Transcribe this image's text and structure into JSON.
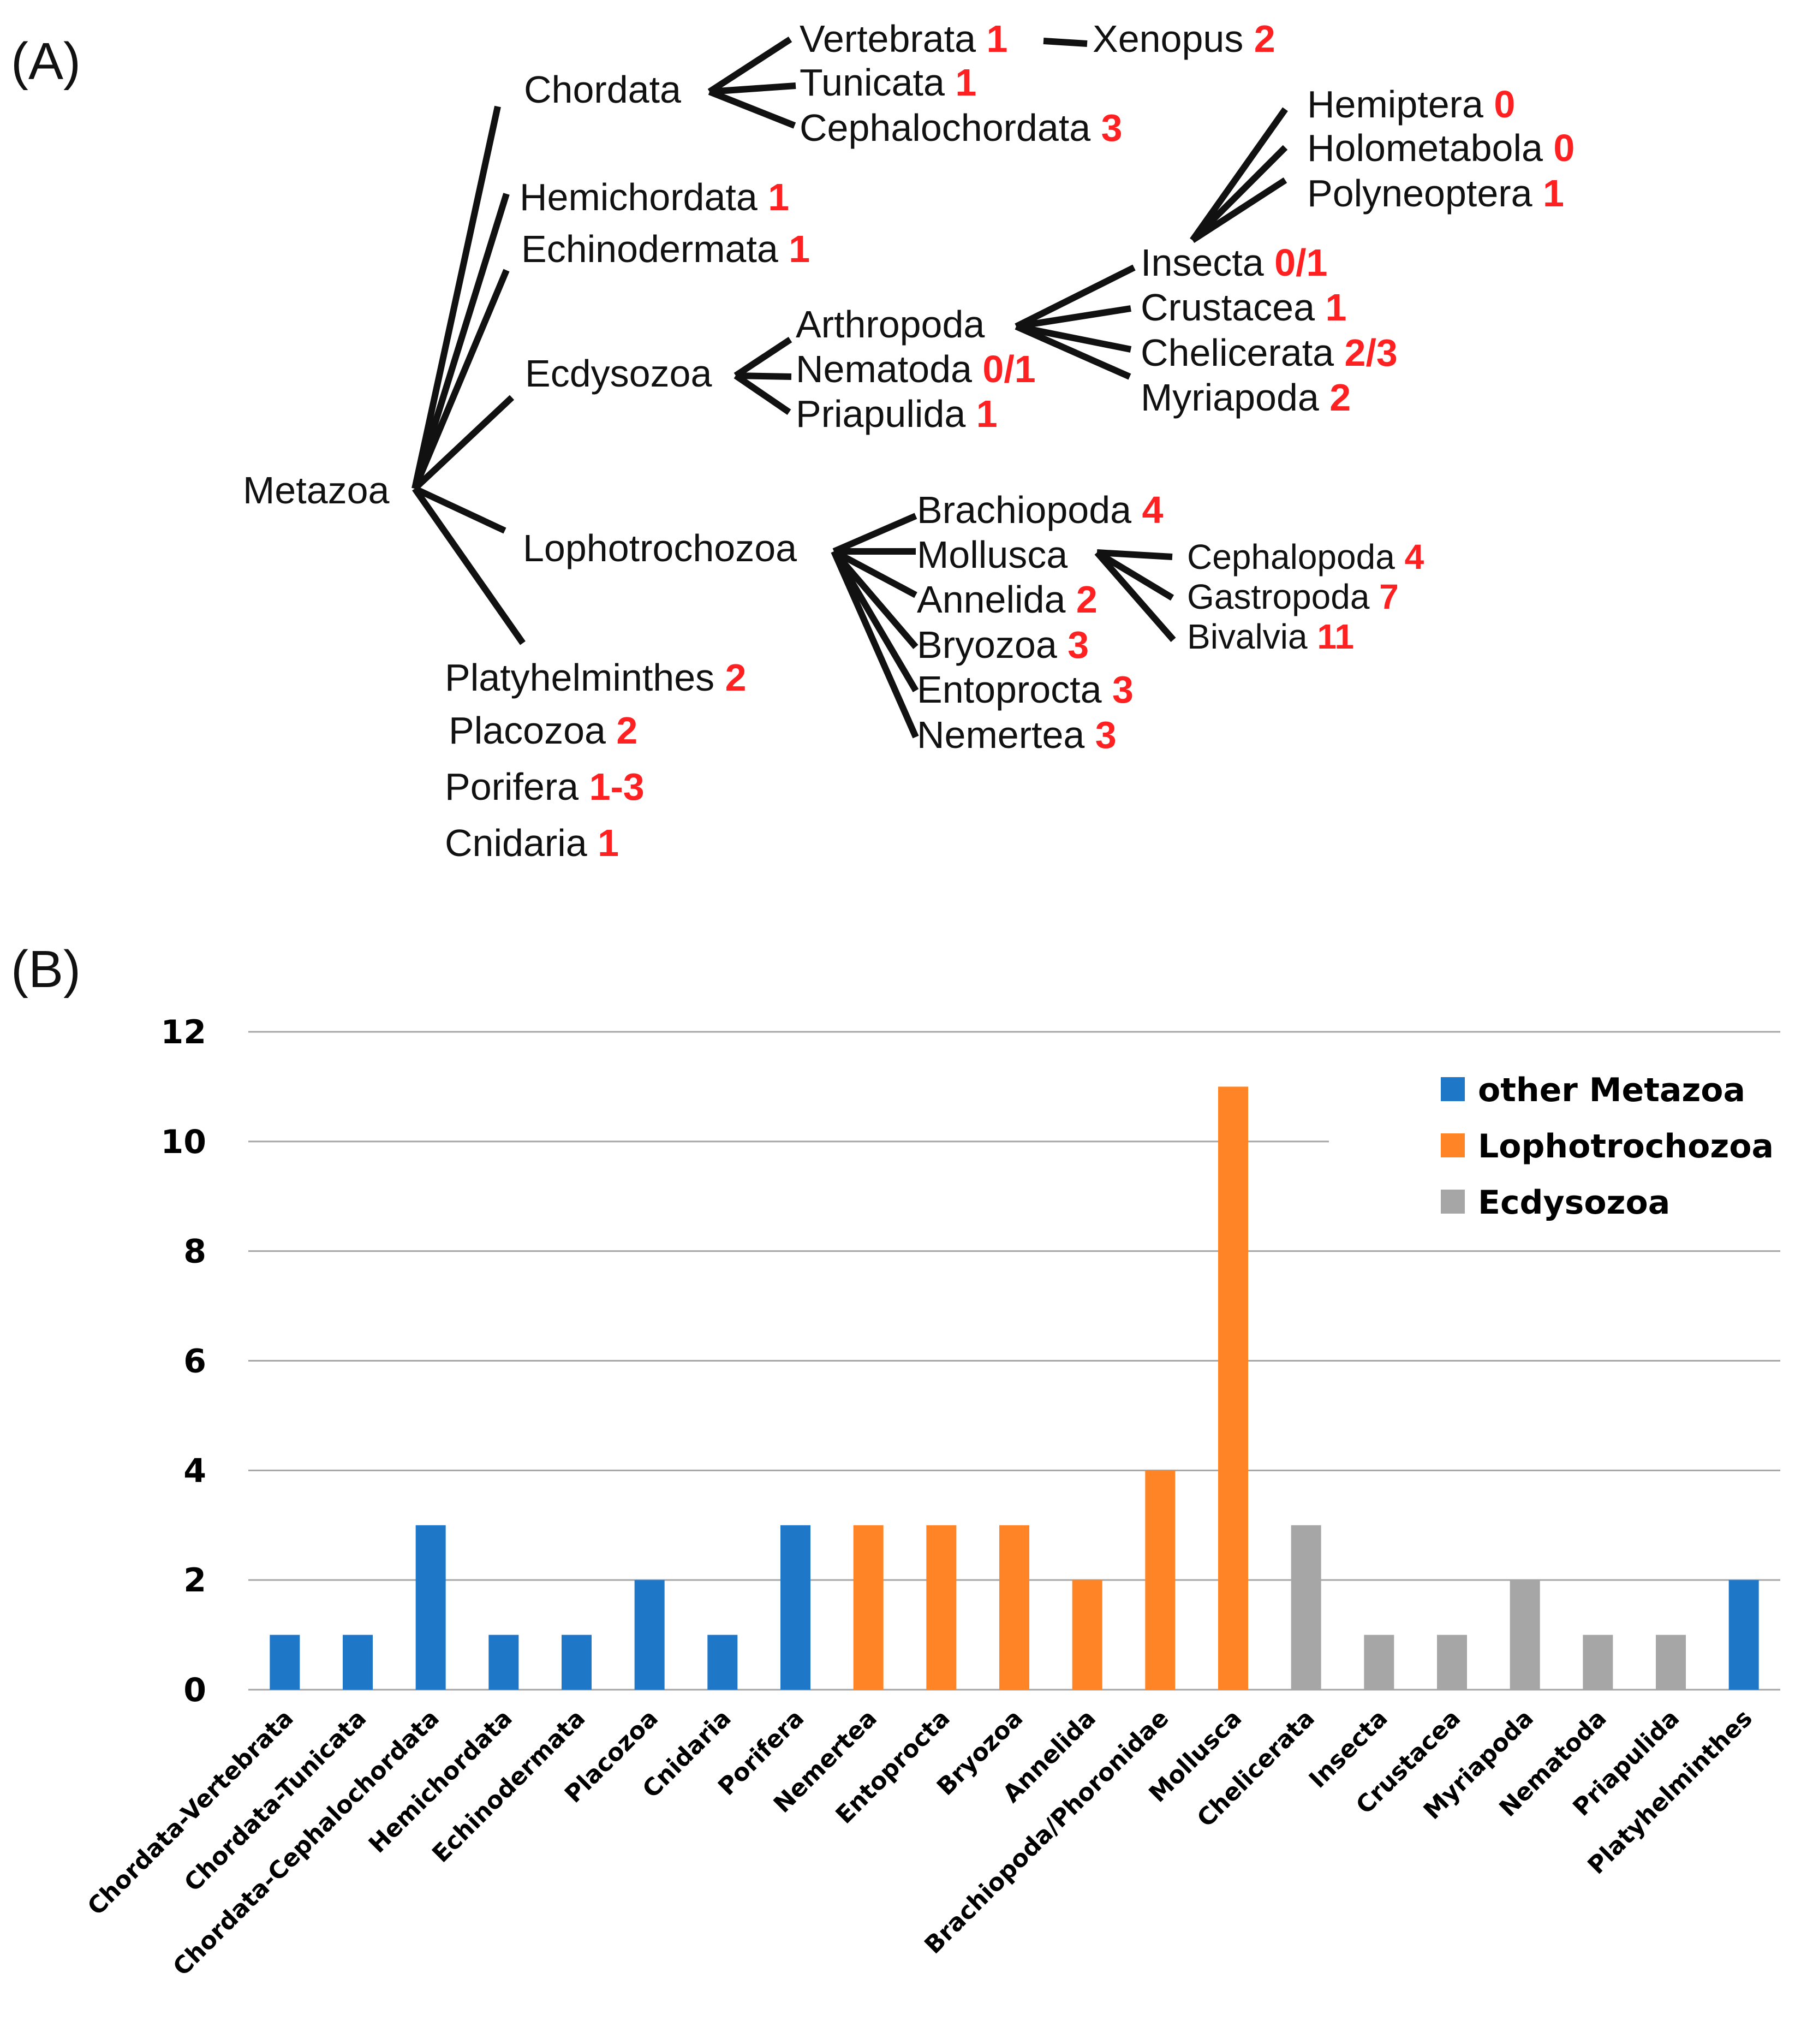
{
  "panel_a": {
    "label": "(A)",
    "taxa": [
      {
        "id": "metazoa",
        "name": "Metazoa",
        "count": ""
      },
      {
        "id": "chordata",
        "name": "Chordata",
        "count": ""
      },
      {
        "id": "vertebrata",
        "name": "Vertebrata",
        "count": "1"
      },
      {
        "id": "xenopus",
        "name": "Xenopus",
        "count": "2"
      },
      {
        "id": "tunicata",
        "name": "Tunicata",
        "count": "1"
      },
      {
        "id": "cephalochordata",
        "name": "Cephalochordata",
        "count": "3"
      },
      {
        "id": "hemichordata",
        "name": "Hemichordata",
        "count": "1"
      },
      {
        "id": "echinodermata",
        "name": "Echinodermata",
        "count": "1"
      },
      {
        "id": "ecdysozoa",
        "name": "Ecdysozoa",
        "count": ""
      },
      {
        "id": "arthropoda",
        "name": "Arthropoda",
        "count": ""
      },
      {
        "id": "nematoda",
        "name": "Nematoda",
        "count": "0/1"
      },
      {
        "id": "priapulida",
        "name": "Priapulida",
        "count": "1"
      },
      {
        "id": "insecta",
        "name": "Insecta",
        "count": "0/1"
      },
      {
        "id": "crustacea",
        "name": "Crustacea",
        "count": "1"
      },
      {
        "id": "chelicerata",
        "name": "Chelicerata",
        "count": "2/3"
      },
      {
        "id": "myriapoda",
        "name": "Myriapoda",
        "count": "2"
      },
      {
        "id": "hemiptera",
        "name": "Hemiptera",
        "count": "0"
      },
      {
        "id": "holometabola",
        "name": "Holometabola",
        "count": "0"
      },
      {
        "id": "polyneoptera",
        "name": "Polyneoptera",
        "count": "1"
      },
      {
        "id": "lophotrochozoa",
        "name": "Lophotrochozoa",
        "count": ""
      },
      {
        "id": "brachiopoda",
        "name": "Brachiopoda",
        "count": "4"
      },
      {
        "id": "mollusca",
        "name": "Mollusca",
        "count": ""
      },
      {
        "id": "annelida",
        "name": "Annelida",
        "count": "2"
      },
      {
        "id": "bryozoa",
        "name": "Bryozoa",
        "count": "3"
      },
      {
        "id": "entoprocta",
        "name": "Entoprocta",
        "count": "3"
      },
      {
        "id": "nemertea",
        "name": "Nemertea",
        "count": "3"
      },
      {
        "id": "cephalopoda",
        "name": "Cephalopoda",
        "count": "4"
      },
      {
        "id": "gastropoda",
        "name": "Gastropoda",
        "count": "7"
      },
      {
        "id": "bivalvia",
        "name": "Bivalvia",
        "count": "11"
      },
      {
        "id": "platyhelminthes",
        "name": "Platyhelminthes",
        "count": "2"
      },
      {
        "id": "placozoa",
        "name": "Placozoa",
        "count": "2"
      },
      {
        "id": "porifera",
        "name": "Porifera",
        "count": "1-3"
      },
      {
        "id": "cnidaria",
        "name": "Cnidaria",
        "count": "1"
      }
    ]
  },
  "panel_b": {
    "label": "(B)"
  },
  "colors": {
    "other_metazoa": "#1f77c8",
    "lophotrochozoa": "#ff8426",
    "ecdysozoa": "#a6a6a6",
    "tree_count": "#ff2121"
  },
  "chart_data": {
    "type": "bar",
    "title": "",
    "xlabel": "",
    "ylabel": "",
    "ylim": [
      0,
      12
    ],
    "yticks": [
      0,
      2,
      4,
      6,
      8,
      10,
      12
    ],
    "grid": true,
    "legend_position": "top-right",
    "legend": [
      {
        "key": "other_metazoa",
        "label": "other Metazoa"
      },
      {
        "key": "lophotrochozoa",
        "label": "Lophotrochozoa"
      },
      {
        "key": "ecdysozoa",
        "label": "Ecdysozoa"
      }
    ],
    "categories": [
      "Chordata-Vertebrata",
      "Chordata-Tunicata",
      "Chordata-Cephalochordata",
      "Hemichordata",
      "Echinodermata",
      "Placozoa",
      "Cnidaria",
      "Porifera",
      "Nemertea",
      "Entoprocta",
      "Bryozoa",
      "Annelida",
      "Brachiopoda/Phoronidae",
      "Mollusca",
      "Chelicerata",
      "Insecta",
      "Crustacea",
      "Myriapoda",
      "Nematoda",
      "Priapulida",
      "Platyhelminthes"
    ],
    "values": [
      1,
      1,
      3,
      1,
      1,
      2,
      1,
      3,
      3,
      3,
      3,
      2,
      4,
      11,
      3,
      1,
      1,
      2,
      1,
      1,
      2
    ],
    "groups": [
      "other_metazoa",
      "other_metazoa",
      "other_metazoa",
      "other_metazoa",
      "other_metazoa",
      "other_metazoa",
      "other_metazoa",
      "other_metazoa",
      "lophotrochozoa",
      "lophotrochozoa",
      "lophotrochozoa",
      "lophotrochozoa",
      "lophotrochozoa",
      "lophotrochozoa",
      "ecdysozoa",
      "ecdysozoa",
      "ecdysozoa",
      "ecdysozoa",
      "ecdysozoa",
      "ecdysozoa",
      "other_metazoa"
    ]
  }
}
